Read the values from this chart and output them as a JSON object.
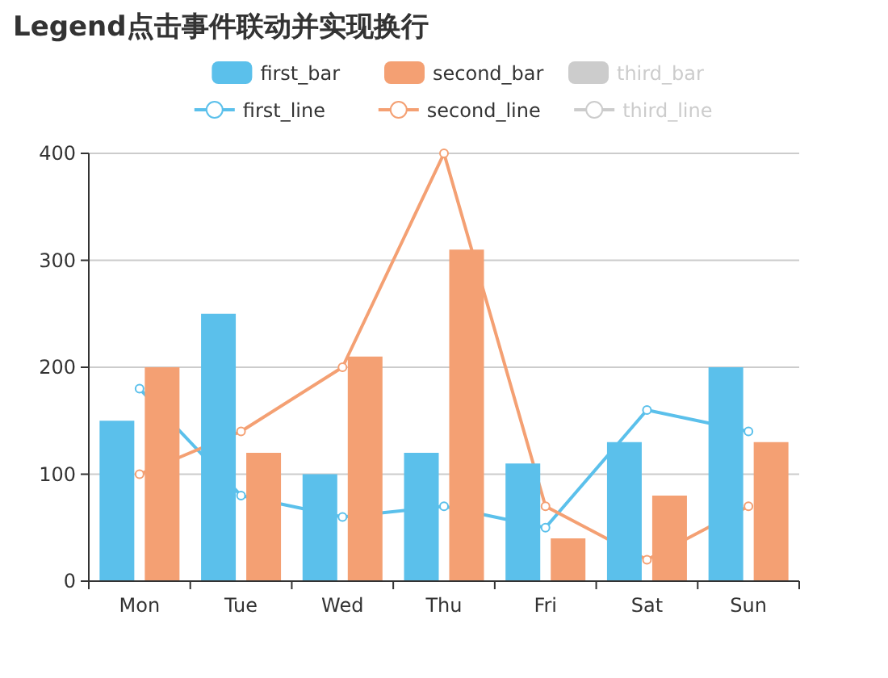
{
  "chart_data": {
    "type": "bar",
    "title": "Legend点击事件联动并实现换行",
    "categories": [
      "Mon",
      "Tue",
      "Wed",
      "Thu",
      "Fri",
      "Sat",
      "Sun"
    ],
    "series": [
      {
        "name": "first_bar",
        "color": "#5bc0eb",
        "values": [
          150,
          250,
          100,
          120,
          110,
          130,
          200
        ]
      },
      {
        "name": "second_bar",
        "color": "#f4a073",
        "values": [
          200,
          120,
          210,
          310,
          40,
          80,
          130
        ]
      },
      {
        "name": "third_bar",
        "color": "#cccccc",
        "values": [
          null,
          null,
          null,
          null,
          null,
          null,
          null
        ]
      },
      {
        "name": "first_line",
        "type": "line",
        "color": "#5bc0eb",
        "marker": "circle",
        "values": [
          180,
          80,
          60,
          70,
          50,
          160,
          140
        ]
      },
      {
        "name": "second_line",
        "type": "line",
        "color": "#f4a073",
        "marker": "circle",
        "values": [
          100,
          140,
          200,
          400,
          70,
          20,
          70
        ]
      },
      {
        "name": "third_line",
        "type": "line",
        "color": "#cccccc",
        "marker": "circle",
        "values": [
          null,
          null,
          null,
          null,
          null,
          null,
          null
        ]
      }
    ],
    "ylim": [
      0,
      400
    ],
    "yticks": [
      0,
      100,
      200,
      300,
      400
    ],
    "grid": "y",
    "legend": "top"
  }
}
